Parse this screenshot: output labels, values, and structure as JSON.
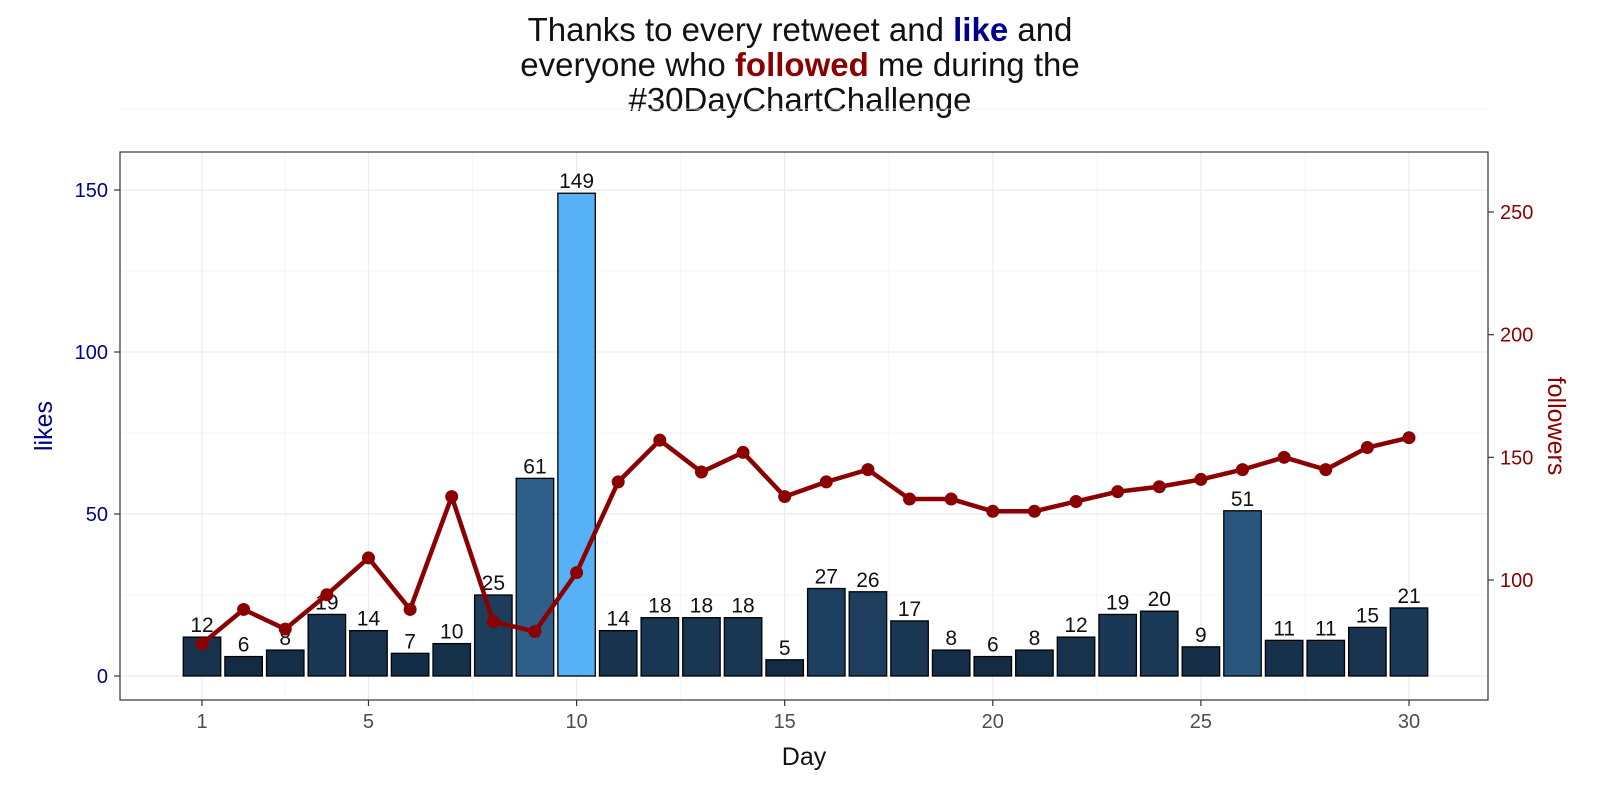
{
  "title": {
    "part1": "Thanks to every retweet and ",
    "like": "like",
    "part2": " and",
    "part3": "everyone who ",
    "followed": "followed",
    "part4": " me during the",
    "part5": "#30DayChartChallenge"
  },
  "colors": {
    "like": "#00008B",
    "followed": "#8B0000",
    "bar_low": "#132B43",
    "bar_high": "#56B1F7",
    "line": "#8B0000",
    "grid": "#EBEBEB"
  },
  "chart_data": {
    "type": "bar",
    "xlabel": "Day",
    "ylabel": "likes",
    "y2label": "followers",
    "x": [
      1,
      2,
      3,
      4,
      5,
      6,
      7,
      8,
      9,
      10,
      11,
      12,
      13,
      14,
      15,
      16,
      17,
      18,
      19,
      20,
      21,
      22,
      23,
      24,
      25,
      26,
      27,
      28,
      29,
      30
    ],
    "xticks": [
      1,
      5,
      10,
      15,
      20,
      25,
      30
    ],
    "ylim": [
      0,
      160
    ],
    "yticks": [
      0,
      50,
      100,
      150
    ],
    "y2lim": [
      65,
      268
    ],
    "y2ticks": [
      100,
      150,
      200,
      250
    ],
    "grid": true,
    "series": [
      {
        "name": "likes",
        "type": "bar",
        "axis": "left",
        "values": [
          12,
          6,
          8,
          19,
          14,
          7,
          10,
          25,
          61,
          149,
          14,
          18,
          18,
          18,
          5,
          27,
          26,
          17,
          8,
          6,
          8,
          12,
          19,
          20,
          9,
          51,
          11,
          11,
          15,
          21
        ]
      },
      {
        "name": "followers",
        "type": "line",
        "axis": "right",
        "values": [
          74,
          88,
          80,
          94,
          109,
          88,
          134,
          83,
          79,
          103,
          140,
          157,
          144,
          152,
          134,
          140,
          145,
          133,
          133,
          128,
          128,
          132,
          136,
          138,
          141,
          145,
          150,
          145,
          154,
          158
        ]
      }
    ]
  }
}
